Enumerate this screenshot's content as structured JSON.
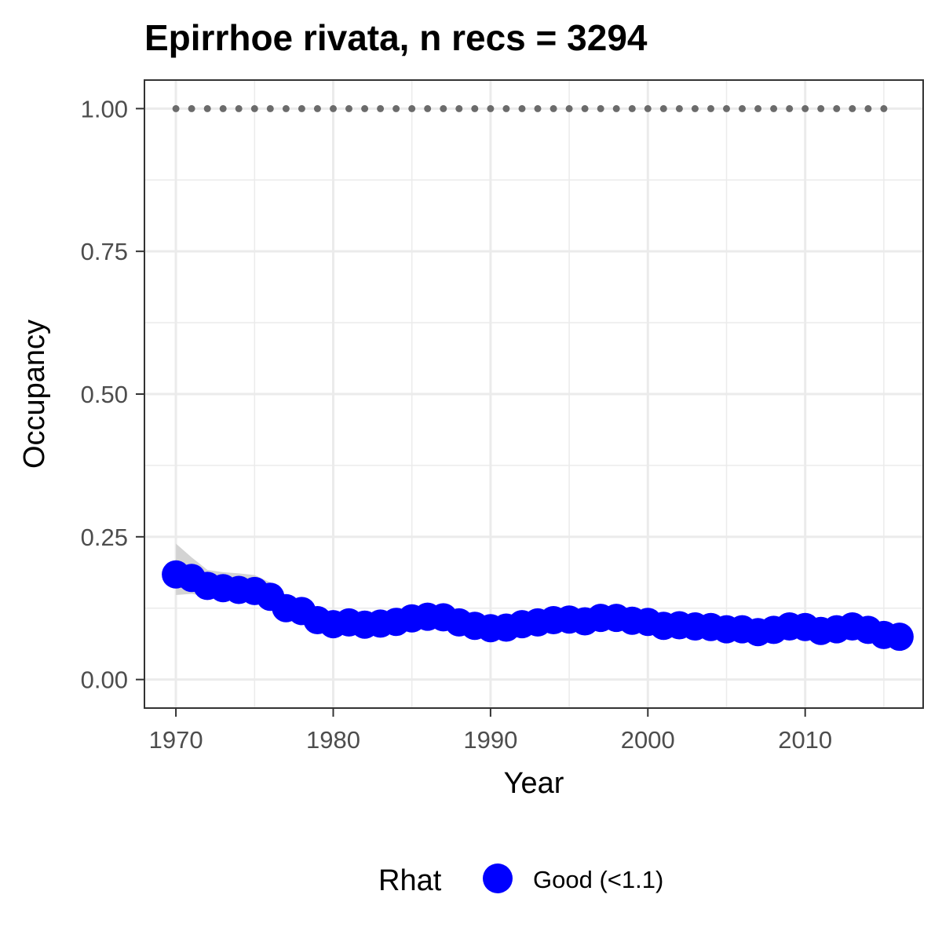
{
  "chart_data": {
    "type": "line",
    "title": "Epirrhoe rivata, n recs = 3294",
    "xlabel": "Year",
    "ylabel": "Occupancy",
    "xlim": [
      1968,
      2017.5
    ],
    "ylim": [
      -0.05,
      1.05
    ],
    "x_ticks": [
      1970,
      1980,
      1990,
      2000,
      2010
    ],
    "x_tick_labels": [
      "1970",
      "1980",
      "1990",
      "2000",
      "2010"
    ],
    "y_ticks": [
      0,
      0.25,
      0.5,
      0.75,
      1.0
    ],
    "y_tick_labels": [
      "0.00",
      "0.25",
      "0.50",
      "0.75",
      "1.00"
    ],
    "grid": true,
    "legend": {
      "position": "bottom",
      "title": "Rhat",
      "items": [
        {
          "label": "Good (<1.1)",
          "color": "#0000ff"
        }
      ]
    },
    "colors": {
      "points": "#0000ff",
      "ribbon": "#d3d3d3",
      "reference_dots": "#6b6b6b",
      "grid": "#ebebeb",
      "panel_border": "#333333"
    },
    "series": [
      {
        "x": [
          1970,
          1971,
          1972,
          1973,
          1974,
          1975,
          1976,
          1977,
          1978,
          1979,
          1980,
          1981,
          1982,
          1983,
          1984,
          1985,
          1986,
          1987,
          1988,
          1989,
          1990,
          1991,
          1992,
          1993,
          1994,
          1995,
          1996,
          1997,
          1998,
          1999,
          2000,
          2001,
          2002,
          2003,
          2004,
          2005,
          2006,
          2007,
          2008,
          2009,
          2010,
          2011,
          2012,
          2013,
          2014,
          2015,
          2016
        ],
        "values": [
          0.184,
          0.178,
          0.164,
          0.16,
          0.157,
          0.155,
          0.145,
          0.125,
          0.12,
          0.104,
          0.097,
          0.1,
          0.096,
          0.098,
          0.101,
          0.107,
          0.11,
          0.109,
          0.1,
          0.094,
          0.09,
          0.091,
          0.097,
          0.1,
          0.104,
          0.105,
          0.102,
          0.108,
          0.108,
          0.103,
          0.101,
          0.094,
          0.095,
          0.093,
          0.092,
          0.088,
          0.088,
          0.083,
          0.087,
          0.093,
          0.092,
          0.085,
          0.088,
          0.093,
          0.087,
          0.078,
          0.075
        ],
        "lower": [
          0.148,
          0.15,
          0.145,
          0.143,
          0.14,
          0.14,
          0.13,
          0.115,
          0.109,
          0.095,
          0.088,
          0.09,
          0.086,
          0.088,
          0.091,
          0.096,
          0.099,
          0.099,
          0.091,
          0.085,
          0.081,
          0.082,
          0.087,
          0.09,
          0.094,
          0.095,
          0.092,
          0.097,
          0.097,
          0.093,
          0.091,
          0.085,
          0.086,
          0.084,
          0.083,
          0.079,
          0.079,
          0.075,
          0.079,
          0.084,
          0.083,
          0.077,
          0.08,
          0.084,
          0.078,
          0.07,
          0.067
        ],
        "upper": [
          0.238,
          0.214,
          0.192,
          0.188,
          0.186,
          0.183,
          0.17,
          0.14,
          0.132,
          0.114,
          0.107,
          0.111,
          0.106,
          0.108,
          0.111,
          0.118,
          0.121,
          0.12,
          0.11,
          0.104,
          0.1,
          0.101,
          0.107,
          0.11,
          0.114,
          0.115,
          0.112,
          0.119,
          0.119,
          0.113,
          0.111,
          0.104,
          0.105,
          0.102,
          0.101,
          0.097,
          0.097,
          0.092,
          0.096,
          0.102,
          0.101,
          0.094,
          0.097,
          0.102,
          0.096,
          0.087,
          0.084
        ]
      }
    ],
    "reference_series": {
      "x_start": 1970,
      "x_end": 2015,
      "value": 1.0
    }
  }
}
